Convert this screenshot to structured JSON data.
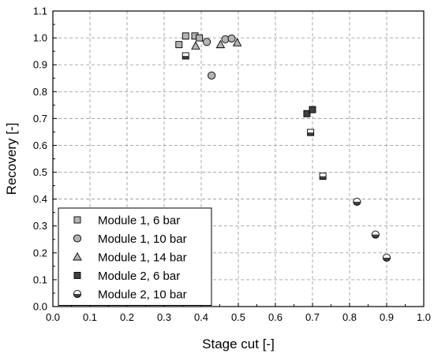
{
  "chart_data": {
    "type": "scatter",
    "title": "",
    "xlabel": "Stage cut [-]",
    "ylabel": "Recovery [-]",
    "xlim": [
      0.0,
      1.0
    ],
    "ylim": [
      0.0,
      1.1
    ],
    "xticks": [
      "0.0",
      "0.1",
      "0.2",
      "0.3",
      "0.4",
      "0.5",
      "0.6",
      "0.7",
      "0.8",
      "0.9",
      "1.0"
    ],
    "yticks": [
      "0.0",
      "0.1",
      "0.2",
      "0.3",
      "0.4",
      "0.5",
      "0.6",
      "0.7",
      "0.8",
      "0.9",
      "1.0",
      "1.1"
    ],
    "grid": true,
    "legend_position": "bottom-left",
    "series": [
      {
        "name": "Module 1, 6 bar",
        "marker": "square",
        "color": "#b4b4b4",
        "points": [
          [
            0.34,
            0.975
          ],
          [
            0.358,
            1.007
          ],
          [
            0.383,
            1.007
          ],
          [
            0.395,
            1.0
          ]
        ]
      },
      {
        "name": "Module 1, 10 bar",
        "marker": "circle",
        "color": "#b4b4b4",
        "points": [
          [
            0.415,
            0.985
          ],
          [
            0.428,
            0.86
          ],
          [
            0.465,
            0.995
          ],
          [
            0.482,
            0.998
          ]
        ]
      },
      {
        "name": "Module 1, 14 bar",
        "marker": "triangle",
        "color": "#b4b4b4",
        "points": [
          [
            0.385,
            0.97
          ],
          [
            0.452,
            0.975
          ],
          [
            0.497,
            0.982
          ]
        ]
      },
      {
        "name": "Module 2, 6 bar",
        "marker": "square",
        "color": "#404040",
        "points": [
          [
            0.685,
            0.718
          ],
          [
            0.7,
            0.733
          ]
        ]
      },
      {
        "name": "Module 2, 10 bar",
        "marker": "circle-half",
        "color": "#404040",
        "points": [
          [
            0.82,
            0.39
          ],
          [
            0.87,
            0.268
          ],
          [
            0.9,
            0.182
          ]
        ]
      },
      {
        "name": "",
        "marker": "square-half",
        "color": "#404040",
        "points": [
          [
            0.358,
            0.933
          ],
          [
            0.695,
            0.648
          ],
          [
            0.728,
            0.485
          ]
        ]
      }
    ]
  }
}
